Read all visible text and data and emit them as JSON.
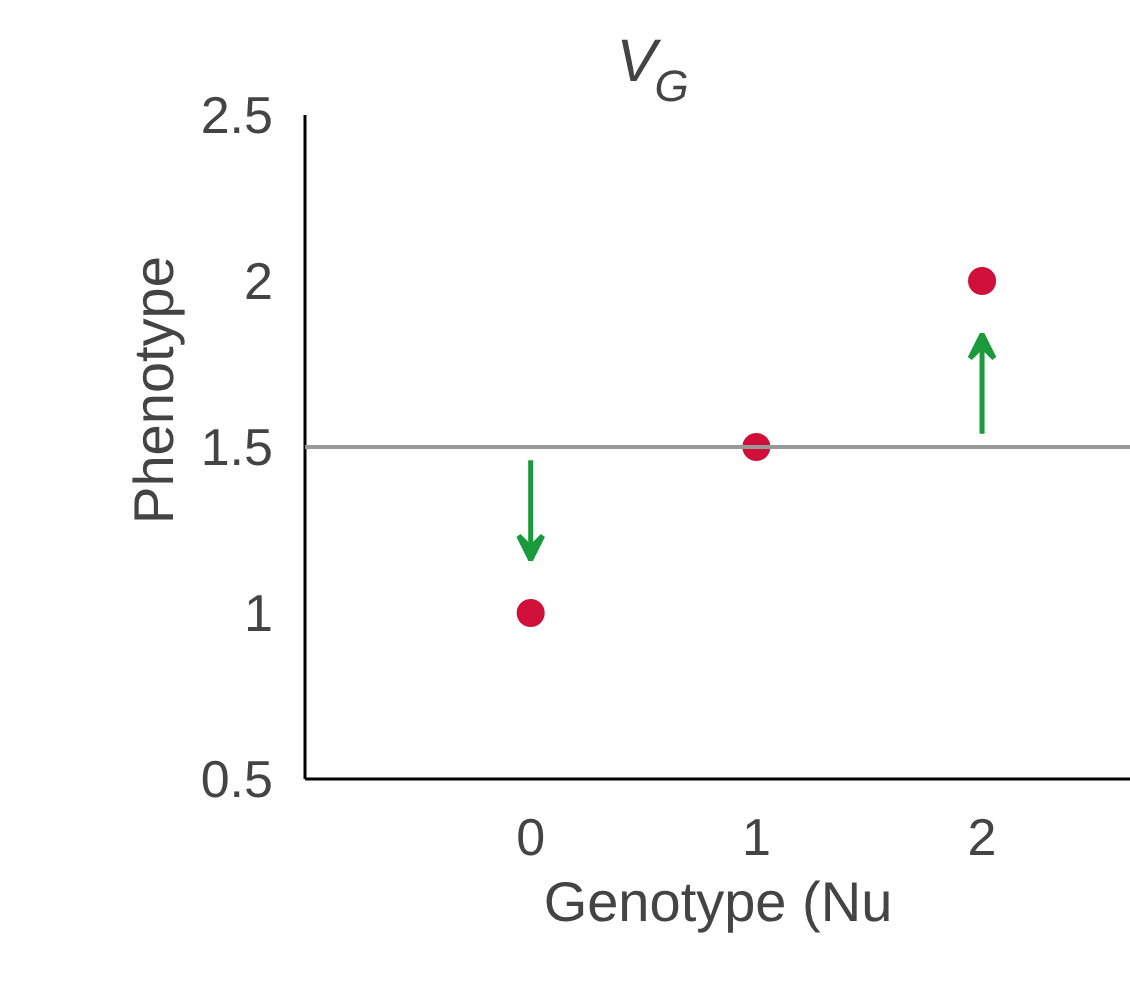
{
  "chart_data": {
    "type": "scatter",
    "title": "V$_{G}$",
    "xlabel": "Genotype (Nu",
    "ylabel": "Phenotype",
    "x": [
      0,
      1,
      2
    ],
    "values": [
      1,
      1.5,
      2
    ],
    "color": "#d0103a",
    "marker": "circle",
    "xlim": [
      -1,
      2.66
    ],
    "ylim": [
      0.5,
      2.5
    ],
    "xticks": [
      0,
      1,
      2
    ],
    "yticks": [
      0.5,
      1,
      1.5,
      2,
      2.5
    ],
    "ref_lines": [
      {
        "axis": "y",
        "value": 1.5,
        "color": "#999999"
      }
    ],
    "grid": false
  }
}
